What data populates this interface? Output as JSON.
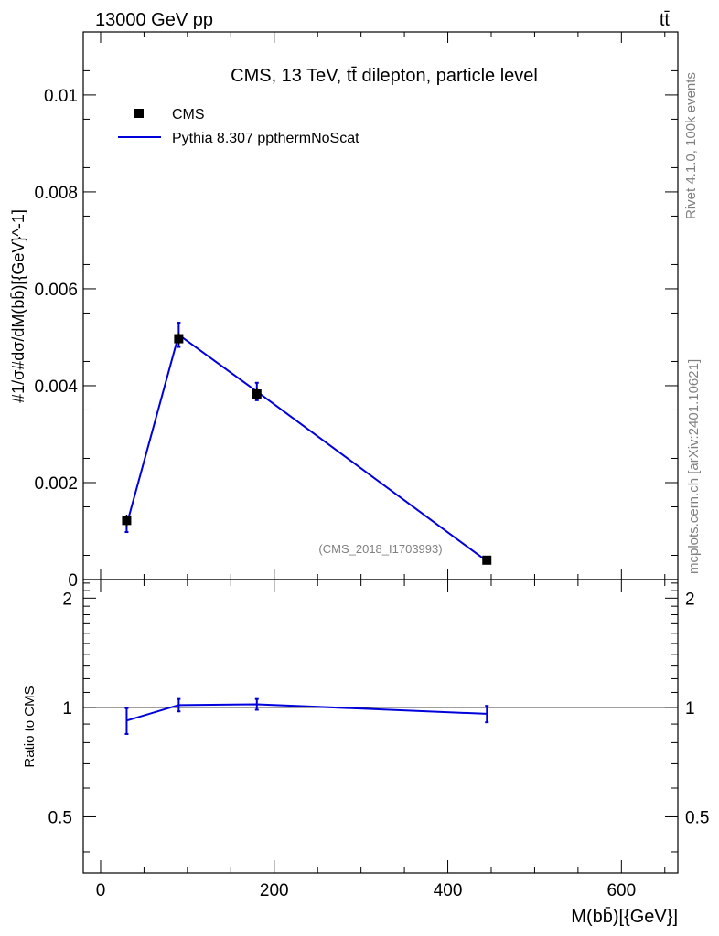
{
  "header": {
    "energy_label": "13000 GeV pp",
    "process_label": "tt̄"
  },
  "side_labels": {
    "rivet": "Rivet 4.1.0,  100k events",
    "mcplots": "mcplots.cern.ch [arXiv:2401.10621]"
  },
  "colors": {
    "data": "#000000",
    "mc": "#0000dd",
    "grey_text": "#808080"
  },
  "chart_data": [
    {
      "type": "scatter",
      "panel": "main",
      "title": "CMS, 13 TeV, tt̄ dilepton, particle level",
      "ylabel": "#1/σ#dσ/dM(bb̄)[{GeV}^-1]",
      "xlim": [
        -20,
        665
      ],
      "ylim": [
        0,
        0.0113
      ],
      "yticks": [
        0,
        0.002,
        0.004,
        0.006,
        0.008,
        0.01
      ],
      "ytick_labels": [
        "0",
        "0.002",
        "0.004",
        "0.006",
        "0.008",
        "0.01"
      ],
      "analysis_label": "(CMS_2018_I1703993)",
      "legend_placement": "top-left",
      "series": [
        {
          "name": "CMS",
          "style": "markers",
          "x": [
            30,
            90,
            180,
            445
          ],
          "y": [
            0.00122,
            0.00497,
            0.00383,
            0.0004
          ],
          "yerr": [
            0.00012,
            0.00012,
            0.00012,
            4e-05
          ]
        },
        {
          "name": "Pythia 8.307 ppthermNoScat",
          "style": "line",
          "x": [
            30,
            90,
            180,
            445
          ],
          "y": [
            0.00113,
            0.00505,
            0.00388,
            0.00038
          ],
          "yerr": [
            0.00015,
            0.00025,
            0.00018,
            3e-05
          ]
        }
      ]
    },
    {
      "type": "line",
      "panel": "ratio",
      "ylabel": "Ratio to CMS",
      "xlabel": "M(bb̄)[{GeV}]",
      "xlim": [
        -20,
        665
      ],
      "ylim": [
        0.35,
        2.25
      ],
      "yticks": [
        0.5,
        1,
        2
      ],
      "ytick_labels": [
        "0.5",
        "1",
        "2"
      ],
      "xticks": [
        0,
        200,
        400,
        600
      ],
      "xtick_labels": [
        "0",
        "200",
        "400",
        "600"
      ],
      "reference_line": 1,
      "series": [
        {
          "name": "Pythia 8.307 ppthermNoScat",
          "x": [
            30,
            90,
            180,
            445
          ],
          "y": [
            0.92,
            1.015,
            1.02,
            0.96
          ],
          "yerr": [
            0.075,
            0.04,
            0.035,
            0.05
          ]
        }
      ]
    }
  ]
}
